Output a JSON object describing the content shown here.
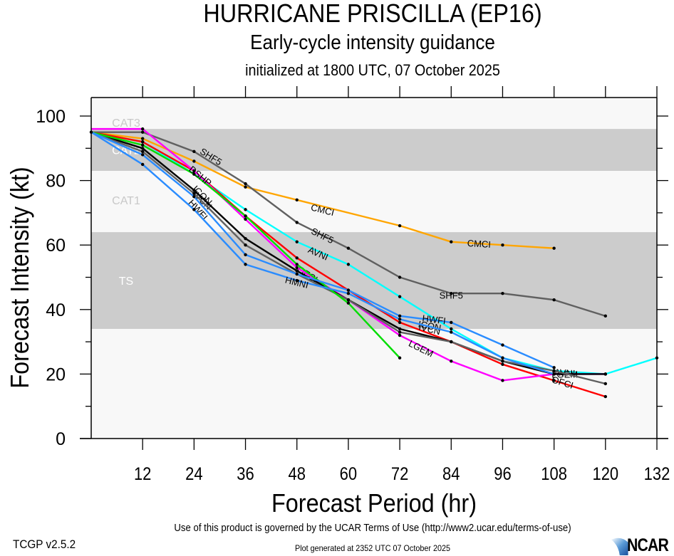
{
  "chart_data": {
    "type": "line",
    "title": "HURRICANE PRISCILLA (EP16)",
    "subtitle": "Early-cycle intensity guidance",
    "subtitle2": "initialized at 1800 UTC, 07 October 2025",
    "xlabel": "Forecast Period (hr)",
    "ylabel": "Forecast Intensity (kt)",
    "xlim": [
      0,
      132
    ],
    "ylim": [
      0,
      100
    ],
    "xticks": [
      12,
      24,
      36,
      48,
      60,
      72,
      84,
      96,
      108,
      120,
      132
    ],
    "yticks": [
      0,
      20,
      40,
      60,
      80,
      100
    ],
    "grid": false,
    "legend": "inline labels on lines",
    "bands": [
      {
        "label": "CAT3",
        "min": 96,
        "max": 100,
        "shade": "light"
      },
      {
        "label": "CAT2",
        "min": 83,
        "max": 96,
        "shade": "dark"
      },
      {
        "label": "CAT1",
        "min": 64,
        "max": 83,
        "shade": "light"
      },
      {
        "label": "TS",
        "min": 34,
        "max": 64,
        "shade": "dark"
      },
      {
        "label": "",
        "min": 0,
        "max": 34,
        "shade": "light"
      }
    ],
    "series": [
      {
        "name": "CMCI",
        "color": "#ffa500",
        "x": [
          0,
          12,
          24,
          36,
          48,
          72,
          84,
          96,
          108
        ],
        "y": [
          95,
          93,
          86,
          78,
          74,
          66,
          61,
          60,
          59
        ],
        "labels": [
          {
            "x": 54,
            "y": 71
          },
          {
            "x": 90.5,
            "y": 60.5
          }
        ]
      },
      {
        "name": "SHF5",
        "color": "#606060",
        "x": [
          0,
          12,
          24,
          36,
          48,
          60,
          72,
          84,
          96,
          108,
          120
        ],
        "y": [
          95,
          95,
          89,
          79,
          67,
          59,
          50,
          45,
          45,
          43,
          38
        ],
        "labels": [
          {
            "x": 28,
            "y": 87.5
          },
          {
            "x": 54,
            "y": 63
          },
          {
            "x": 84,
            "y": 44.5
          }
        ]
      },
      {
        "name": "AVNI",
        "color": "#00ffff",
        "x": [
          0,
          12,
          24,
          36,
          48,
          60,
          72,
          84,
          96,
          108,
          120,
          132
        ],
        "y": [
          95,
          92,
          82,
          71,
          61,
          54,
          44,
          34,
          25,
          21,
          20,
          25
        ],
        "labels": [
          {
            "x": 53,
            "y": 57.5
          },
          {
            "x": 110.5,
            "y": 20.5
          }
        ]
      },
      {
        "name": "OFCI",
        "color": "#ff0000",
        "x": [
          0,
          12,
          24,
          36,
          48,
          60,
          72,
          84,
          96,
          108,
          120
        ],
        "y": [
          95,
          92,
          83,
          69,
          56,
          46,
          36,
          30,
          23,
          18,
          13
        ],
        "labels": [
          {
            "x": 50.5,
            "y": 51
          },
          {
            "x": 110,
            "y": 17.5
          }
        ]
      },
      {
        "name": "LGEM",
        "color": "#ff00ff",
        "x": [
          0,
          12,
          24,
          36,
          48,
          60,
          72,
          84,
          96,
          108,
          120
        ],
        "y": [
          96,
          96,
          83,
          68,
          53,
          43,
          32,
          24,
          18,
          20,
          20
        ],
        "labels": [
          {
            "x": 77,
            "y": 28
          },
          {
            "x": 110.5,
            "y": 20
          }
        ]
      },
      {
        "name": "IVCN",
        "color": "#000000",
        "x": [
          0,
          12,
          24,
          36,
          48,
          60,
          72,
          84,
          96,
          108,
          120
        ],
        "y": [
          95,
          90,
          77,
          62,
          52,
          43,
          34,
          30,
          24,
          20,
          20
        ],
        "labels": [
          {
            "x": 26,
            "y": 74
          },
          {
            "x": 79,
            "y": 34
          }
        ]
      },
      {
        "name": "ICON",
        "color": "#606060",
        "x": [
          0,
          12,
          24,
          36,
          48,
          60,
          72,
          84,
          96,
          108,
          120
        ],
        "y": [
          95,
          89,
          76,
          60,
          51,
          43,
          33,
          30,
          24,
          21,
          17
        ],
        "labels": [
          {
            "x": 26,
            "y": 75.5
          },
          {
            "x": 79,
            "y": 35
          }
        ]
      },
      {
        "name": "DSHP",
        "color": "#00dd00",
        "x": [
          0,
          12,
          24,
          36,
          48,
          60,
          72
        ],
        "y": [
          95,
          91,
          82,
          69,
          54,
          42,
          25
        ],
        "labels": [
          {
            "x": 25.5,
            "y": 81.5
          }
        ]
      },
      {
        "name": "HWFI",
        "color": "#2a8cff",
        "x": [
          0,
          12,
          24,
          36,
          48,
          60,
          72,
          84,
          96,
          108
        ],
        "y": [
          95,
          88,
          75,
          57,
          51,
          46,
          38,
          36,
          29,
          22
        ],
        "labels": [
          {
            "x": 25,
            "y": 71
          },
          {
            "x": 80,
            "y": 37
          }
        ]
      },
      {
        "name": "HMNI",
        "color": "#2a8cff",
        "x": [
          0,
          12,
          24,
          36,
          48,
          60,
          72,
          84,
          96,
          108
        ],
        "y": [
          95,
          85,
          71,
          54,
          49,
          45,
          37,
          33,
          25,
          20
        ],
        "labels": [
          {
            "x": 48,
            "y": 48.5
          }
        ]
      }
    ]
  },
  "footer": {
    "terms": "Use of this product is governed by the UCAR Terms of Use (http://www2.ucar.edu/terms-of-use)",
    "version": "TCGP v2.5.2",
    "generated": "Plot generated at 2352 UTC   07 October 2025",
    "logo": "NCAR"
  }
}
